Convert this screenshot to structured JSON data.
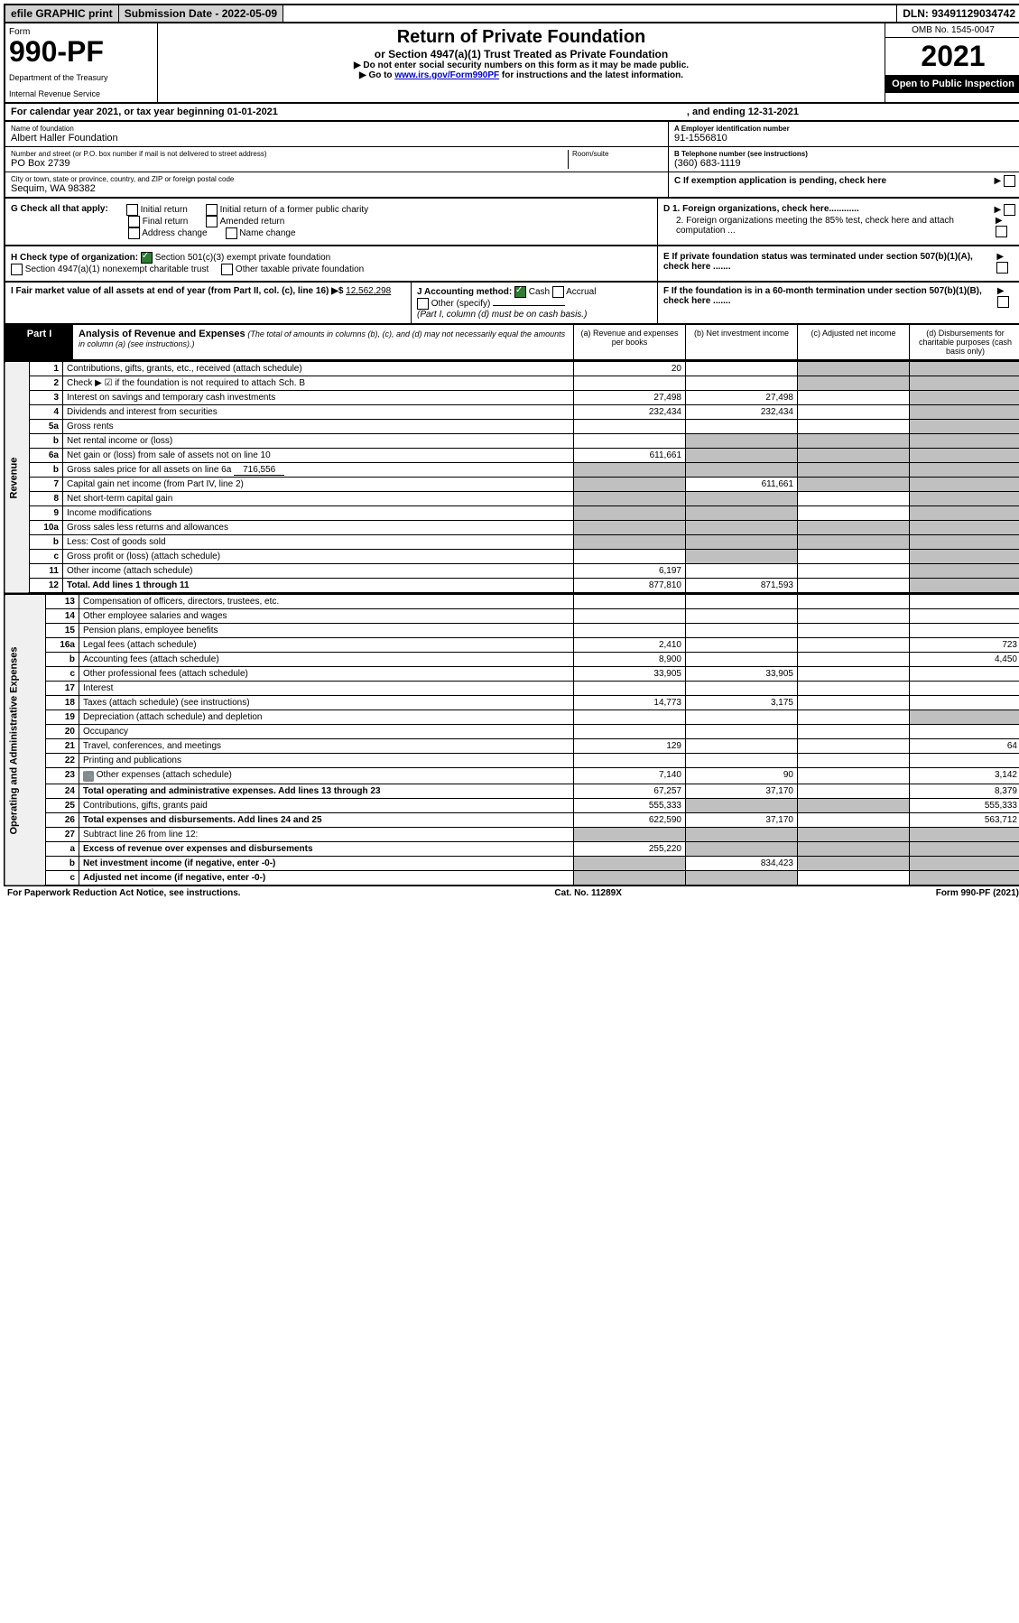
{
  "top": {
    "efile": "efile GRAPHIC print",
    "submission": "Submission Date - 2022-05-09",
    "dln": "DLN: 93491129034742"
  },
  "header": {
    "form_label": "Form",
    "form_number": "990-PF",
    "dept1": "Department of the Treasury",
    "dept2": "Internal Revenue Service",
    "title": "Return of Private Foundation",
    "subtitle": "or Section 4947(a)(1) Trust Treated as Private Foundation",
    "instr1": "▶ Do not enter social security numbers on this form as it may be made public.",
    "instr2_pre": "▶ Go to ",
    "instr2_link": "www.irs.gov/Form990PF",
    "instr2_post": " for instructions and the latest information.",
    "omb": "OMB No. 1545-0047",
    "year": "2021",
    "open": "Open to Public Inspection"
  },
  "calendar": {
    "text1": "For calendar year 2021, or tax year beginning 01-01-2021",
    "text2": ", and ending 12-31-2021"
  },
  "id": {
    "name_lbl": "Name of foundation",
    "name": "Albert Haller Foundation",
    "addr_lbl": "Number and street (or P.O. box number if mail is not delivered to street address)",
    "addr": "PO Box 2739",
    "room_lbl": "Room/suite",
    "city_lbl": "City or town, state or province, country, and ZIP or foreign postal code",
    "city": "Sequim, WA  98382",
    "ein_lbl": "A Employer identification number",
    "ein": "91-1556810",
    "tel_lbl": "B Telephone number (see instructions)",
    "tel": "(360) 683-1119",
    "c": "C If exemption application is pending, check here",
    "d1": "D 1. Foreign organizations, check here............",
    "d2": "2. Foreign organizations meeting the 85% test, check here and attach computation ...",
    "e": "E  If private foundation status was terminated under section 507(b)(1)(A), check here .......",
    "f": "F  If the foundation is in a 60-month termination under section 507(b)(1)(B), check here .......",
    "g_lbl": "G Check all that apply:",
    "g_opts": [
      "Initial return",
      "Initial return of a former public charity",
      "Final return",
      "Amended return",
      "Address change",
      "Name change"
    ],
    "h_lbl": "H Check type of organization:",
    "h1": "Section 501(c)(3) exempt private foundation",
    "h2": "Section 4947(a)(1) nonexempt charitable trust",
    "h3": "Other taxable private foundation",
    "i_lbl": "I Fair market value of all assets at end of year (from Part II, col. (c), line 16) ▶$ ",
    "i_val": "12,562,298",
    "j_lbl": "J Accounting method:",
    "j1": "Cash",
    "j2": "Accrual",
    "j3": "Other (specify)",
    "j_note": "(Part I, column (d) must be on cash basis.)"
  },
  "part1": {
    "label": "Part I",
    "title": "Analysis of Revenue and Expenses",
    "title_note": "(The total of amounts in columns (b), (c), and (d) may not necessarily equal the amounts in column (a) (see instructions).)",
    "col_a": "(a) Revenue and expenses per books",
    "col_b": "(b) Net investment income",
    "col_c": "(c) Adjusted net income",
    "col_d": "(d) Disbursements for charitable purposes (cash basis only)",
    "side_rev": "Revenue",
    "side_exp": "Operating and Administrative Expenses"
  },
  "rows": [
    {
      "n": "1",
      "d": "Contributions, gifts, grants, etc., received (attach schedule)",
      "a": "20",
      "b": "",
      "c": "s",
      "ds": "s"
    },
    {
      "n": "2",
      "d": "Check ▶ ☑ if the foundation is not required to attach Sch. B",
      "a": "",
      "b": "",
      "c": "s",
      "ds": "s",
      "checked": true
    },
    {
      "n": "3",
      "d": "Interest on savings and temporary cash investments",
      "a": "27,498",
      "b": "27,498",
      "c": "",
      "ds": "s"
    },
    {
      "n": "4",
      "d": "Dividends and interest from securities",
      "a": "232,434",
      "b": "232,434",
      "c": "",
      "ds": "s"
    },
    {
      "n": "5a",
      "d": "Gross rents",
      "a": "",
      "b": "",
      "c": "",
      "ds": "s"
    },
    {
      "n": "b",
      "d": "Net rental income or (loss)",
      "a": "",
      "b": "s",
      "c": "s",
      "ds": "s",
      "inline": true
    },
    {
      "n": "6a",
      "d": "Net gain or (loss) from sale of assets not on line 10",
      "a": "611,661",
      "b": "s",
      "c": "s",
      "ds": "s"
    },
    {
      "n": "b",
      "d": "Gross sales price for all assets on line 6a",
      "inline_val": "716,556",
      "a": "s",
      "b": "s",
      "c": "s",
      "ds": "s"
    },
    {
      "n": "7",
      "d": "Capital gain net income (from Part IV, line 2)",
      "a": "s",
      "b": "611,661",
      "c": "s",
      "ds": "s"
    },
    {
      "n": "8",
      "d": "Net short-term capital gain",
      "a": "s",
      "b": "s",
      "c": "",
      "ds": "s"
    },
    {
      "n": "9",
      "d": "Income modifications",
      "a": "s",
      "b": "s",
      "c": "",
      "ds": "s"
    },
    {
      "n": "10a",
      "d": "Gross sales less returns and allowances",
      "a": "s",
      "b": "s",
      "c": "s",
      "ds": "s",
      "inline": true
    },
    {
      "n": "b",
      "d": "Less: Cost of goods sold",
      "a": "s",
      "b": "s",
      "c": "s",
      "ds": "s",
      "inline": true
    },
    {
      "n": "c",
      "d": "Gross profit or (loss) (attach schedule)",
      "a": "",
      "b": "s",
      "c": "",
      "ds": "s"
    },
    {
      "n": "11",
      "d": "Other income (attach schedule)",
      "a": "6,197",
      "b": "",
      "c": "",
      "ds": "s"
    },
    {
      "n": "12",
      "d": "Total. Add lines 1 through 11",
      "a": "877,810",
      "b": "871,593",
      "c": "",
      "ds": "s",
      "bold": true
    }
  ],
  "exp_rows": [
    {
      "n": "13",
      "d": "Compensation of officers, directors, trustees, etc.",
      "a": "",
      "b": "",
      "c": "",
      "ds": ""
    },
    {
      "n": "14",
      "d": "Other employee salaries and wages",
      "a": "",
      "b": "",
      "c": "",
      "ds": ""
    },
    {
      "n": "15",
      "d": "Pension plans, employee benefits",
      "a": "",
      "b": "",
      "c": "",
      "ds": ""
    },
    {
      "n": "16a",
      "d": "Legal fees (attach schedule)",
      "a": "2,410",
      "b": "",
      "c": "",
      "ds": "723"
    },
    {
      "n": "b",
      "d": "Accounting fees (attach schedule)",
      "a": "8,900",
      "b": "",
      "c": "",
      "ds": "4,450"
    },
    {
      "n": "c",
      "d": "Other professional fees (attach schedule)",
      "a": "33,905",
      "b": "33,905",
      "c": "",
      "ds": ""
    },
    {
      "n": "17",
      "d": "Interest",
      "a": "",
      "b": "",
      "c": "",
      "ds": ""
    },
    {
      "n": "18",
      "d": "Taxes (attach schedule) (see instructions)",
      "a": "14,773",
      "b": "3,175",
      "c": "",
      "ds": ""
    },
    {
      "n": "19",
      "d": "Depreciation (attach schedule) and depletion",
      "a": "",
      "b": "",
      "c": "",
      "ds": "s"
    },
    {
      "n": "20",
      "d": "Occupancy",
      "a": "",
      "b": "",
      "c": "",
      "ds": ""
    },
    {
      "n": "21",
      "d": "Travel, conferences, and meetings",
      "a": "129",
      "b": "",
      "c": "",
      "ds": "64"
    },
    {
      "n": "22",
      "d": "Printing and publications",
      "a": "",
      "b": "",
      "c": "",
      "ds": ""
    },
    {
      "n": "23",
      "d": "Other expenses (attach schedule)",
      "a": "7,140",
      "b": "90",
      "c": "",
      "ds": "3,142",
      "icon": true
    },
    {
      "n": "24",
      "d": "Total operating and administrative expenses. Add lines 13 through 23",
      "a": "67,257",
      "b": "37,170",
      "c": "",
      "ds": "8,379",
      "bold": true
    },
    {
      "n": "25",
      "d": "Contributions, gifts, grants paid",
      "a": "555,333",
      "b": "s",
      "c": "s",
      "ds": "555,333"
    },
    {
      "n": "26",
      "d": "Total expenses and disbursements. Add lines 24 and 25",
      "a": "622,590",
      "b": "37,170",
      "c": "",
      "ds": "563,712",
      "bold": true
    },
    {
      "n": "27",
      "d": "Subtract line 26 from line 12:",
      "a": "s",
      "b": "s",
      "c": "s",
      "ds": "s"
    },
    {
      "n": "a",
      "d": "Excess of revenue over expenses and disbursements",
      "a": "255,220",
      "b": "s",
      "c": "s",
      "ds": "s",
      "bold": true
    },
    {
      "n": "b",
      "d": "Net investment income (if negative, enter -0-)",
      "a": "s",
      "b": "834,423",
      "c": "s",
      "ds": "s",
      "bold": true
    },
    {
      "n": "c",
      "d": "Adjusted net income (if negative, enter -0-)",
      "a": "s",
      "b": "s",
      "c": "",
      "ds": "s",
      "bold": true
    }
  ],
  "footer": {
    "left": "For Paperwork Reduction Act Notice, see instructions.",
    "mid": "Cat. No. 11289X",
    "right": "Form 990-PF (2021)"
  }
}
